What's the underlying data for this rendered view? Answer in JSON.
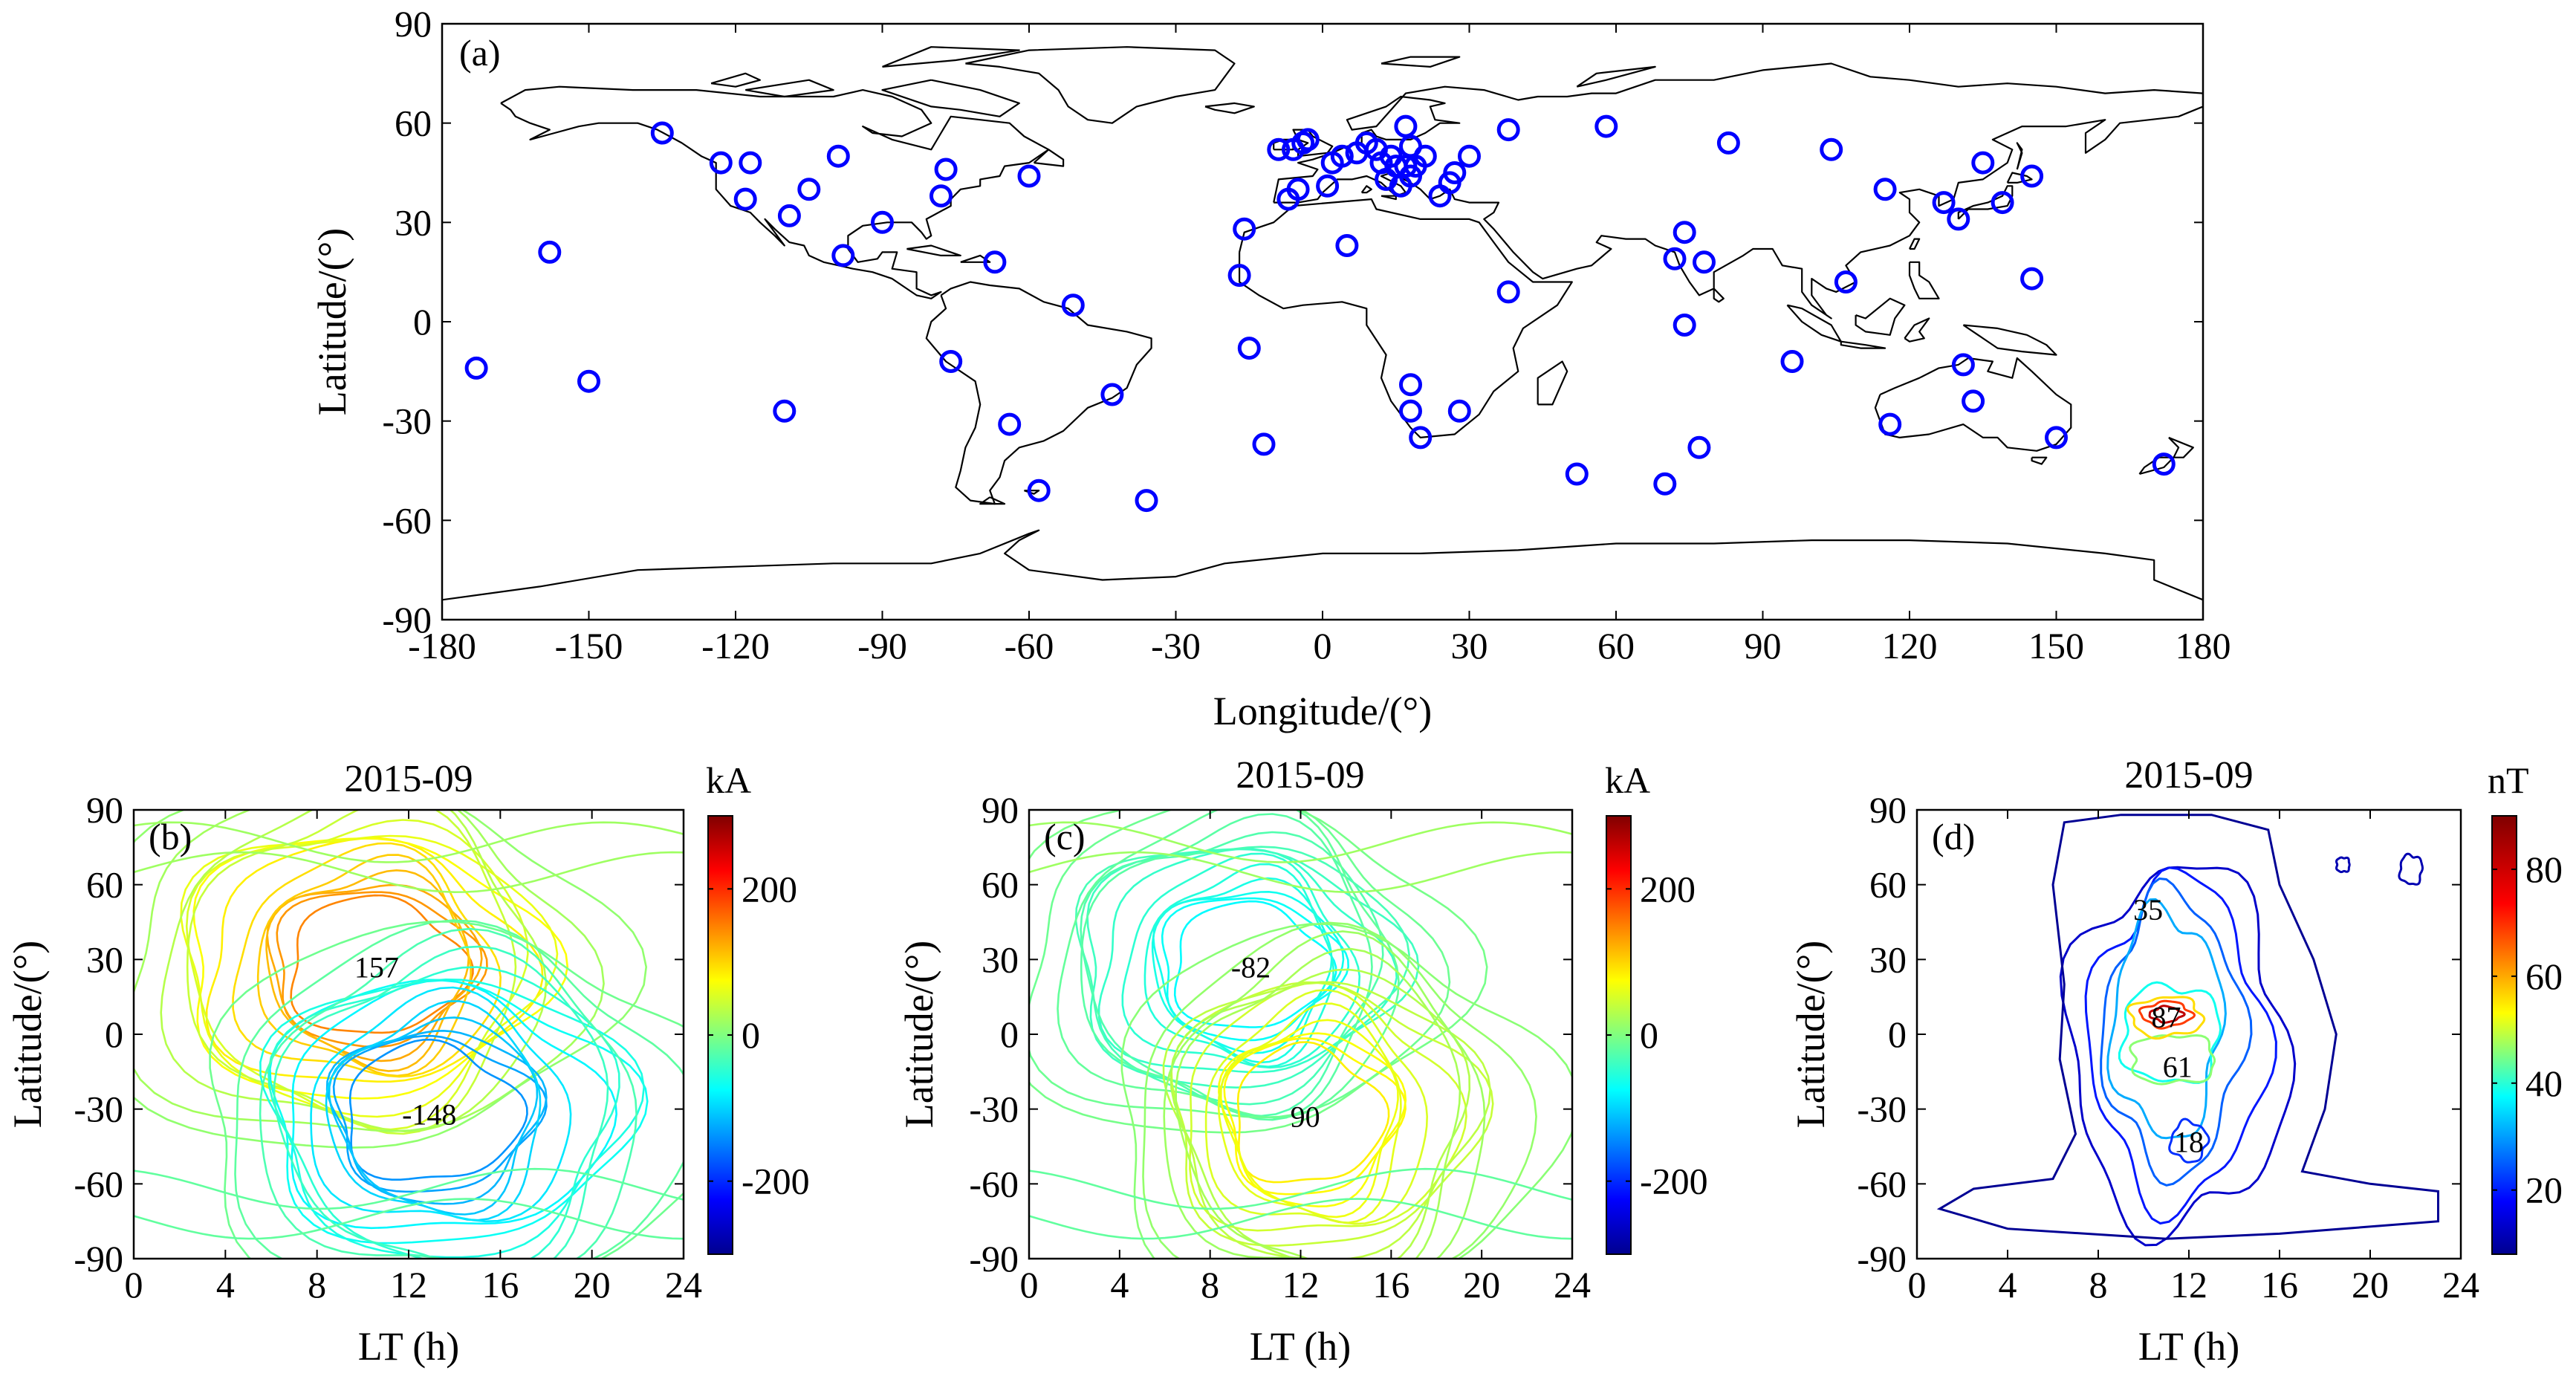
{
  "chart_data": [
    {
      "type": "scatter",
      "panel_label": "(a)",
      "title": "",
      "xlabel": "Longitude/(°)",
      "ylabel": "Latitude/(°)",
      "xlim": [
        -180,
        180
      ],
      "ylim": [
        -90,
        90
      ],
      "xticks": [
        "-180",
        "-150",
        "-120",
        "-90",
        "-60",
        "-30",
        "0",
        "30",
        "60",
        "90",
        "120",
        "150",
        "180"
      ],
      "yticks": [
        "90",
        "60",
        "30",
        "0",
        "-30",
        "-60",
        "-90"
      ],
      "marker_color": "#0000ff",
      "coastline_color": "#000000",
      "points": [
        [
          -173,
          -14
        ],
        [
          -158,
          21
        ],
        [
          -150,
          -18
        ],
        [
          -135,
          57
        ],
        [
          -123,
          48
        ],
        [
          -117,
          48
        ],
        [
          -118,
          37
        ],
        [
          -109,
          32
        ],
        [
          -105,
          40
        ],
        [
          -99,
          50
        ],
        [
          -98,
          20
        ],
        [
          -90,
          30
        ],
        [
          -77,
          46
        ],
        [
          -78,
          38
        ],
        [
          -67,
          18
        ],
        [
          -60,
          44
        ],
        [
          -51,
          5
        ],
        [
          -76,
          -12
        ],
        [
          -43,
          -22
        ],
        [
          -64,
          -31
        ],
        [
          -58,
          -51
        ],
        [
          -36,
          -54
        ],
        [
          -110,
          -27
        ],
        [
          -16,
          28
        ],
        [
          -17,
          14
        ],
        [
          -15,
          -8
        ],
        [
          -12,
          -37
        ],
        [
          -7,
          37
        ],
        [
          -5,
          40
        ],
        [
          -6,
          52
        ],
        [
          -4,
          54
        ],
        [
          -3,
          55
        ],
        [
          -9,
          52
        ],
        [
          1,
          41
        ],
        [
          2,
          48
        ],
        [
          4,
          50
        ],
        [
          5,
          23
        ],
        [
          7,
          51
        ],
        [
          9,
          54
        ],
        [
          11,
          52
        ],
        [
          12,
          48
        ],
        [
          13,
          43
        ],
        [
          14,
          50
        ],
        [
          15,
          47
        ],
        [
          16,
          41
        ],
        [
          17,
          47
        ],
        [
          18,
          44
        ],
        [
          17,
          59
        ],
        [
          18,
          53
        ],
        [
          19,
          47
        ],
        [
          20,
          -35
        ],
        [
          18,
          -19
        ],
        [
          18,
          -27
        ],
        [
          21,
          50
        ],
        [
          24,
          38
        ],
        [
          26,
          42
        ],
        [
          28,
          -27
        ],
        [
          27,
          45
        ],
        [
          30,
          50
        ],
        [
          38,
          58
        ],
        [
          38,
          9
        ],
        [
          52,
          -46
        ],
        [
          58,
          59
        ],
        [
          70,
          -49
        ],
        [
          72,
          19
        ],
        [
          74,
          27
        ],
        [
          74,
          -1
        ],
        [
          77,
          -38
        ],
        [
          78,
          18
        ],
        [
          83,
          54
        ],
        [
          96,
          -12
        ],
        [
          104,
          52
        ],
        [
          107,
          12
        ],
        [
          115,
          40
        ],
        [
          116,
          -31
        ],
        [
          127,
          36
        ],
        [
          130,
          31
        ],
        [
          131,
          -13
        ],
        [
          133,
          -24
        ],
        [
          135,
          48
        ],
        [
          139,
          36
        ],
        [
          145,
          44
        ],
        [
          145,
          13
        ],
        [
          150,
          -35
        ],
        [
          172,
          -43
        ]
      ]
    },
    {
      "type": "contour",
      "panel_label": "(b)",
      "title": "2015-09",
      "xlabel": "LT (h)",
      "ylabel": "Latitude/(°)",
      "xlim": [
        0,
        24
      ],
      "ylim": [
        -90,
        90
      ],
      "xticks": [
        "0",
        "4",
        "8",
        "12",
        "16",
        "20",
        "24"
      ],
      "yticks": [
        "90",
        "60",
        "30",
        "0",
        "-30",
        "-60",
        "-90"
      ],
      "colorbar": {
        "unit": "kA",
        "ticks": [
          "200",
          "0",
          "-200"
        ],
        "range": [
          -300,
          300
        ]
      },
      "extrema": [
        {
          "label": "157",
          "value": 157,
          "lt": 10.6,
          "lat": 27,
          "sx": 2.9,
          "sy": 24
        },
        {
          "label": "-148",
          "value": -148,
          "lt": 12.9,
          "lat": -32,
          "sx": 2.9,
          "sy": 24
        }
      ]
    },
    {
      "type": "contour",
      "panel_label": "(c)",
      "title": "2015-09",
      "xlabel": "LT (h)",
      "ylabel": "Latitude/(°)",
      "xlim": [
        0,
        24
      ],
      "ylim": [
        -90,
        90
      ],
      "xticks": [
        "0",
        "4",
        "8",
        "12",
        "16",
        "20",
        "24"
      ],
      "yticks": [
        "90",
        "60",
        "30",
        "0",
        "-30",
        "-60",
        "-90"
      ],
      "colorbar": {
        "unit": "kA",
        "ticks": [
          "200",
          "0",
          "-200"
        ],
        "range": [
          -300,
          300
        ]
      },
      "extrema": [
        {
          "label": "-82",
          "value": -82,
          "lt": 9.8,
          "lat": 27,
          "sx": 2.6,
          "sy": 22
        },
        {
          "label": "90",
          "value": 90,
          "lt": 12.2,
          "lat": -33,
          "sx": 2.5,
          "sy": 24
        }
      ]
    },
    {
      "type": "contour",
      "panel_label": "(d)",
      "title": "2015-09",
      "xlabel": "LT (h)",
      "ylabel": "Latitude/(°)",
      "xlim": [
        0,
        24
      ],
      "ylim": [
        -90,
        90
      ],
      "xticks": [
        "0",
        "4",
        "8",
        "12",
        "16",
        "20",
        "24"
      ],
      "yticks": [
        "90",
        "60",
        "30",
        "0",
        "-30",
        "-60",
        "-90"
      ],
      "colorbar": {
        "unit": "nT",
        "ticks": [
          "80",
          "60",
          "40",
          "20"
        ],
        "range": [
          8,
          90
        ]
      },
      "extrema": [
        {
          "label": "35",
          "value": 35,
          "lt": 10.2,
          "lat": 50
        },
        {
          "label": "87",
          "value": 87,
          "lt": 11.0,
          "lat": 7
        },
        {
          "label": "61",
          "value": 61,
          "lt": 11.5,
          "lat": -13
        },
        {
          "label": "18",
          "value": 18,
          "lt": 12.0,
          "lat": -43
        }
      ]
    }
  ]
}
